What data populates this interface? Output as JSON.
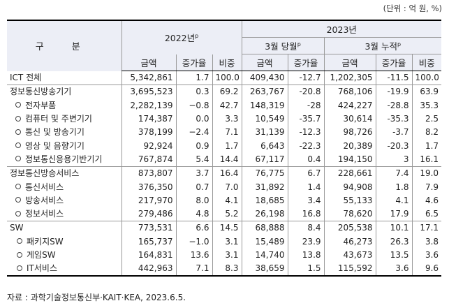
{
  "unit_note": "(단위 : 억 원, %)",
  "header": {
    "gubun": "구 분",
    "year_2022": "2022년",
    "year_2022_sup": "p",
    "year_2023": "2023년",
    "month_current": "3월 당월",
    "month_current_sup": "p",
    "month_cumulative": "3월 누적",
    "month_cumulative_sup": "p",
    "col_amount": "금액",
    "col_growth": "증가율",
    "col_share": "비중"
  },
  "rows": [
    {
      "label": "ICT 전체",
      "level": 0,
      "v": [
        "5,342,861",
        "1.7",
        "100.0",
        "409,430",
        "-12.7",
        "1,202,305",
        "-11.5",
        "100.0"
      ]
    },
    {
      "label": "정보통신방송기기",
      "level": 0,
      "v": [
        "3,695,523",
        "0.3",
        "69.2",
        "263,767",
        "-20.8",
        "768,106",
        "-19.9",
        "63.9"
      ]
    },
    {
      "label": "전자부품",
      "level": 1,
      "v": [
        "2,282,139",
        "−0.8",
        "42.7",
        "148,319",
        "-28",
        "424,227",
        "-28.8",
        "35.3"
      ]
    },
    {
      "label": "컴퓨터 및 주변기기",
      "level": 1,
      "v": [
        "174,387",
        "0.0",
        "3.3",
        "10,549",
        "-35.7",
        "30,614",
        "-35.3",
        "2.5"
      ]
    },
    {
      "label": "통신 및 방송기기",
      "level": 1,
      "v": [
        "378,199",
        "−2.4",
        "7.1",
        "31,139",
        "-12.3",
        "98,726",
        "-3.7",
        "8.2"
      ]
    },
    {
      "label": "영상 및 음향기기",
      "level": 1,
      "v": [
        "92,924",
        "0.9",
        "1.7",
        "6,643",
        "-22.3",
        "20,389",
        "-20.3",
        "1.7"
      ]
    },
    {
      "label": "정보통신응용기반기기",
      "level": 1,
      "v": [
        "767,874",
        "5.4",
        "14.4",
        "67,117",
        "0.4",
        "194,150",
        "3",
        "16.1"
      ]
    },
    {
      "label": "정보통신방송서비스",
      "level": 0,
      "v": [
        "873,807",
        "3.7",
        "16.4",
        "76,775",
        "6.7",
        "228,661",
        "7.4",
        "19.0"
      ]
    },
    {
      "label": "통신서비스",
      "level": 1,
      "v": [
        "376,350",
        "0.7",
        "7.0",
        "31,892",
        "1.4",
        "94,908",
        "1.8",
        "7.9"
      ]
    },
    {
      "label": "방송서비스",
      "level": 1,
      "v": [
        "217,970",
        "8.0",
        "4.1",
        "18,685",
        "3.4",
        "55,133",
        "4.1",
        "4.6"
      ]
    },
    {
      "label": "정보서비스",
      "level": 1,
      "v": [
        "279,486",
        "4.8",
        "5.2",
        "26,198",
        "16.8",
        "78,620",
        "17.9",
        "6.5"
      ]
    },
    {
      "label": "SW",
      "level": 0,
      "v": [
        "773,531",
        "6.6",
        "14.5",
        "68,888",
        "8.4",
        "205,538",
        "10.1",
        "17.1"
      ]
    },
    {
      "label": "패키지SW",
      "level": 1,
      "v": [
        "165,737",
        "−1.0",
        "3.1",
        "15,489",
        "23.9",
        "46,273",
        "26.3",
        "3.8"
      ]
    },
    {
      "label": "게임SW",
      "level": 1,
      "v": [
        "164,831",
        "13.6",
        "3.1",
        "14,740",
        "13.8",
        "43,673",
        "13.5",
        "3.6"
      ]
    },
    {
      "label": "IT서비스",
      "level": 1,
      "v": [
        "442,963",
        "7.1",
        "8.3",
        "38,659",
        "1.5",
        "115,592",
        "3.6",
        "9.6"
      ]
    }
  ],
  "source": "자료 : 과학기술정보통신부·KAIT·KEA, 2023.6.5."
}
